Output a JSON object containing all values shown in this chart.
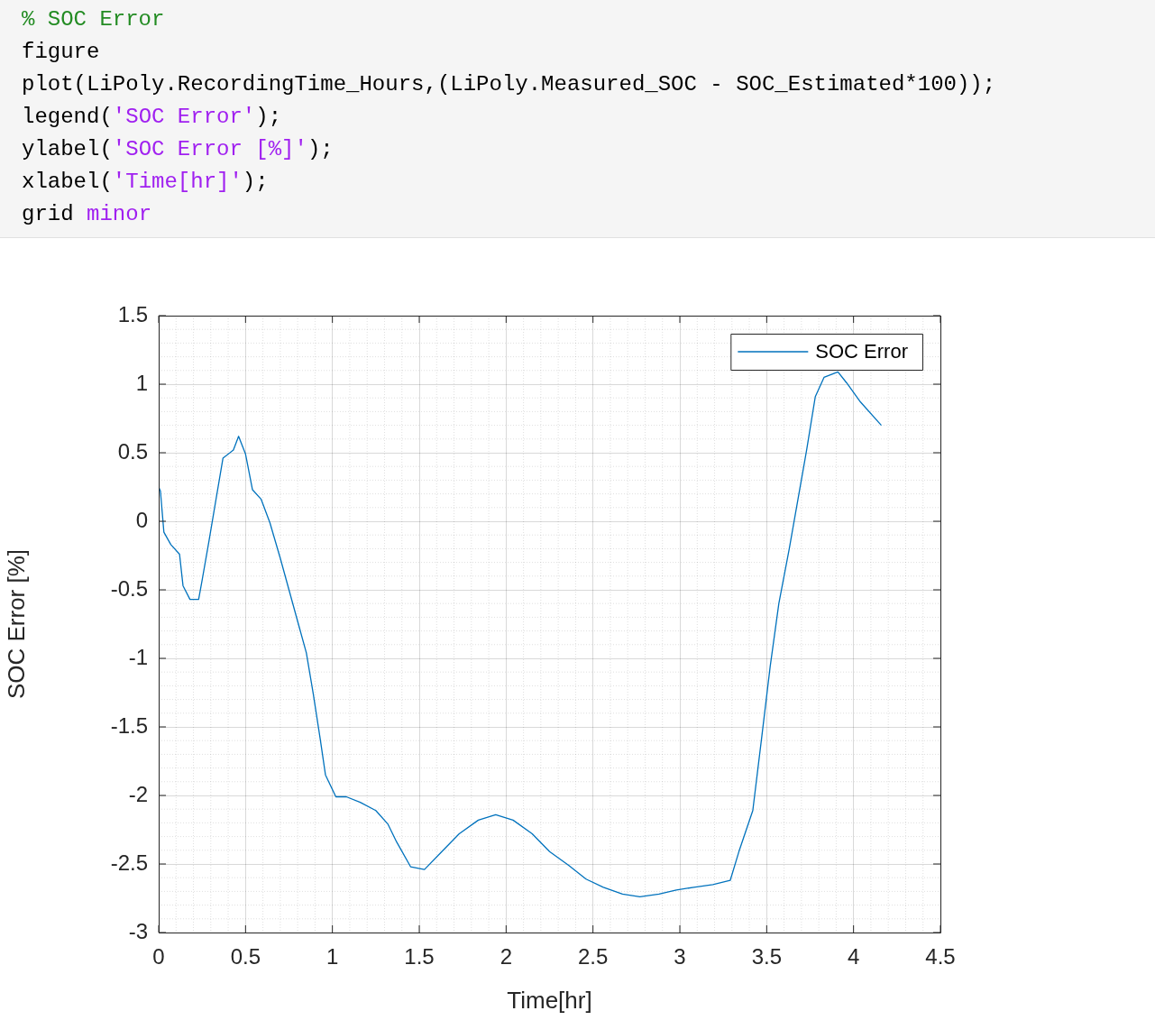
{
  "chart_data": {
    "type": "line",
    "xlabel": "Time[hr]",
    "ylabel": "SOC Error [%]",
    "annotations": [
      "% SOC Error",
      "figure",
      "plot(LiPoly.RecordingTime_Hours,(LiPoly.Measured_SOC - SOC_Estimated*100));",
      "legend('SOC Error');",
      "ylabel('SOC Error [%]');",
      "xlabel('Time[hr]');",
      "grid minor"
    ],
    "xlim": [
      0,
      4.5
    ],
    "xticks": [
      0,
      0.5,
      1,
      1.5,
      2,
      2.5,
      3,
      3.5,
      4,
      4.5
    ],
    "ylim": [
      -3,
      1.5
    ],
    "yticks": [
      -3,
      -2.5,
      -2,
      -1.5,
      -1,
      -0.5,
      0,
      0.5,
      1,
      1.5
    ],
    "grid": true,
    "legend": "top right",
    "series": [
      {
        "name": "SOC Error",
        "color": "#0072bd",
        "x": [
          0,
          0.01,
          0.03,
          0.07,
          0.12,
          0.14,
          0.18,
          0.23,
          0.25,
          0.29,
          0.33,
          0.37,
          0.43,
          0.46,
          0.5,
          0.54,
          0.59,
          0.64,
          0.7,
          0.75,
          0.8,
          0.85,
          0.89,
          0.93,
          0.96,
          1.02,
          1.08,
          1.16,
          1.25,
          1.32,
          1.37,
          1.45,
          1.53,
          1.63,
          1.73,
          1.84,
          1.94,
          2.04,
          2.15,
          2.25,
          2.36,
          2.46,
          2.56,
          2.67,
          2.77,
          2.88,
          2.98,
          3.08,
          3.19,
          3.29,
          3.34,
          3.42,
          3.47,
          3.52,
          3.57,
          3.63,
          3.68,
          3.73,
          3.78,
          3.83,
          3.91,
          3.96,
          4.04,
          4.16
        ],
        "values": [
          0.25,
          0.22,
          -0.08,
          -0.17,
          -0.24,
          -0.47,
          -0.57,
          -0.57,
          -0.43,
          -0.14,
          0.16,
          0.46,
          0.52,
          0.62,
          0.49,
          0.23,
          0.16,
          -0.01,
          -0.27,
          -0.5,
          -0.73,
          -0.96,
          -1.26,
          -1.59,
          -1.85,
          -2.01,
          -2.01,
          -2.05,
          -2.11,
          -2.21,
          -2.34,
          -2.52,
          -2.54,
          -2.41,
          -2.28,
          -2.18,
          -2.14,
          -2.18,
          -2.28,
          -2.41,
          -2.51,
          -2.61,
          -2.67,
          -2.72,
          -2.74,
          -2.72,
          -2.69,
          -2.67,
          -2.65,
          -2.62,
          -2.41,
          -2.11,
          -1.59,
          -1.06,
          -0.6,
          -0.2,
          0.16,
          0.52,
          0.91,
          1.05,
          1.09,
          1.01,
          0.87,
          0.7
        ]
      }
    ]
  }
}
